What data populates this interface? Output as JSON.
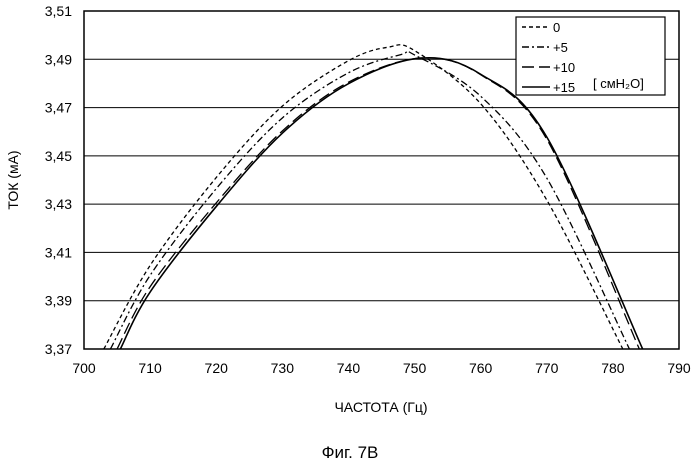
{
  "chart_data": {
    "type": "line",
    "title": "",
    "xlabel": "ЧАСТОТА (Гц)",
    "ylabel": "ТОК (мА)",
    "xlim": [
      700,
      790
    ],
    "ylim": [
      3.37,
      3.51
    ],
    "x_ticks": [
      700,
      710,
      720,
      730,
      740,
      750,
      760,
      770,
      780,
      790
    ],
    "y_ticks": [
      3.37,
      3.39,
      3.41,
      3.43,
      3.45,
      3.47,
      3.49,
      3.51
    ],
    "x_tick_labels": [
      "700",
      "710",
      "720",
      "730",
      "740",
      "750",
      "760",
      "770",
      "780",
      "790"
    ],
    "y_tick_labels": [
      "3,37",
      "3,39",
      "3,41",
      "3,43",
      "3,45",
      "3,47",
      "3,49",
      "3,51"
    ],
    "grid": "horizontal",
    "legend_position": "top-right",
    "series": [
      {
        "name": "0",
        "dash": "short-dash",
        "x": [
          703,
          710,
          720,
          730,
          740,
          746,
          750,
          760,
          770,
          781.5
        ],
        "y": [
          3.37,
          3.4046,
          3.441,
          3.4706,
          3.4894,
          3.495,
          3.4936,
          3.4716,
          3.4317,
          3.37
        ]
      },
      {
        "name": "+5",
        "dash": "dash-dot",
        "x": [
          704,
          710,
          720,
          730,
          740,
          748,
          750,
          760,
          770,
          782.5
        ],
        "y": [
          3.37,
          3.4005,
          3.4364,
          3.4657,
          3.4844,
          3.492,
          3.4918,
          3.4747,
          3.4408,
          3.37
        ]
      },
      {
        "name": "+10",
        "dash": "long-dash",
        "x": [
          705,
          710,
          720,
          730,
          740,
          751,
          760,
          770,
          784
        ],
        "y": [
          3.37,
          3.3958,
          3.4305,
          3.4603,
          3.4805,
          3.4905,
          3.4836,
          3.4569,
          3.37
        ]
      },
      {
        "name": "+15",
        "dash": "solid",
        "x": [
          705.5,
          710,
          720,
          730,
          740,
          751,
          760,
          770,
          784.5
        ],
        "y": [
          3.37,
          3.3936,
          3.429,
          3.4594,
          3.4799,
          3.4905,
          3.4838,
          3.4578,
          3.37
        ]
      }
    ],
    "legend": {
      "entries": [
        "0",
        "+5",
        "+10",
        "+15"
      ],
      "unit_label": "[ смH₂O]"
    }
  },
  "figure_caption": "Фиг. 7В"
}
